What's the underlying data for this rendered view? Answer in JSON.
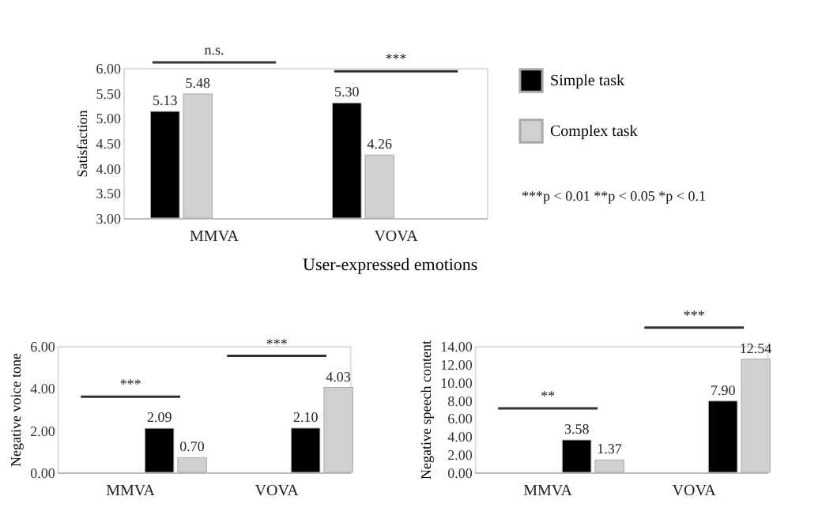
{
  "chart_data": [
    {
      "type": "bar",
      "categories": [
        "MMVA",
        "VOVA"
      ],
      "ylabel": "Satisfaction",
      "ylim": [
        3,
        6
      ],
      "yticks": [
        {
          "value": 3,
          "label": "3.00"
        },
        {
          "value": 3.5,
          "label": "3.50"
        },
        {
          "value": 4,
          "label": "4.00"
        },
        {
          "value": 4.5,
          "label": "4.50"
        },
        {
          "value": 5,
          "label": "5.00"
        },
        {
          "value": 5.5,
          "label": "5.50"
        },
        {
          "value": 6,
          "label": "6.00"
        }
      ],
      "series": [
        {
          "name": "Simple task",
          "color": "#000000",
          "values": [
            5.13,
            5.3
          ],
          "value_labels": [
            "5.13",
            "5.30"
          ]
        },
        {
          "name": "Complex task",
          "color": "#d0d0d0",
          "values": [
            5.48,
            4.26
          ],
          "value_labels": [
            "5.48",
            "4.26"
          ]
        }
      ],
      "legend": "right",
      "annotations": [
        "n.s.",
        "***",
        "***p < 0.01 **p < 0.05 *p < 0.1"
      ]
    },
    {
      "type": "bar",
      "title": "User-expressed emotions",
      "categories": [
        "MMVA",
        "VOVA"
      ],
      "ylabel": "Negative voice tone",
      "ylim": [
        0,
        6
      ],
      "yticks": [
        {
          "value": 0,
          "label": "0.00"
        },
        {
          "value": 2,
          "label": "2.00"
        },
        {
          "value": 4,
          "label": "4.00"
        },
        {
          "value": 6,
          "label": "6.00"
        }
      ],
      "series": [
        {
          "color": "#000000",
          "values": [
            2.09,
            2.1
          ],
          "value_labels": [
            "2.09",
            "2.10"
          ]
        },
        {
          "color": "#d0d0d0",
          "values": [
            0.7,
            4.03
          ],
          "value_labels": [
            "0.70",
            "4.03"
          ]
        }
      ],
      "annotations": [
        "***",
        "***"
      ]
    },
    {
      "type": "bar",
      "categories": [
        "MMVA",
        "VOVA"
      ],
      "ylabel": "Negative speech content",
      "ylim": [
        0,
        14
      ],
      "yticks": [
        {
          "value": 0,
          "label": "0.00"
        },
        {
          "value": 2,
          "label": "2.00"
        },
        {
          "value": 4,
          "label": "4.00"
        },
        {
          "value": 6,
          "label": "6.00"
        },
        {
          "value": 8,
          "label": "8.00"
        },
        {
          "value": 10,
          "label": "10.00"
        },
        {
          "value": 12,
          "label": "12.00"
        },
        {
          "value": 14,
          "label": "14.00"
        }
      ],
      "series": [
        {
          "color": "#000000",
          "values": [
            3.58,
            7.9
          ],
          "value_labels": [
            "3.58",
            "7.90"
          ]
        },
        {
          "color": "#d0d0d0",
          "values": [
            1.37,
            12.54
          ],
          "value_labels": [
            "1.37",
            "12.54"
          ]
        }
      ],
      "annotations": [
        "**",
        "***"
      ]
    }
  ]
}
